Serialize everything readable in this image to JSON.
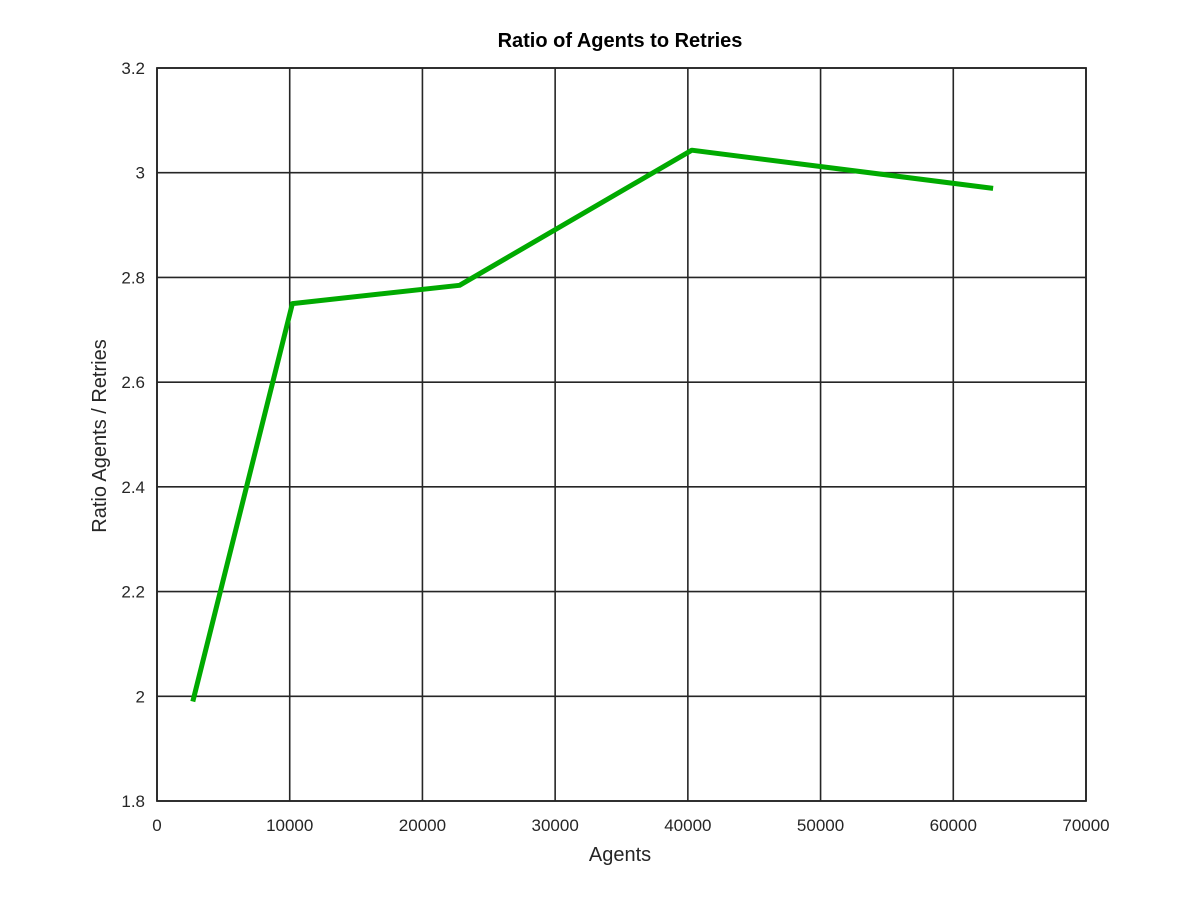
{
  "chart_data": {
    "type": "line",
    "title": "Ratio of Agents to Retries",
    "xlabel": "Agents",
    "ylabel": "Ratio Agents / Retries",
    "xlim": [
      0,
      70000
    ],
    "ylim": [
      1.8,
      3.2
    ],
    "xticks": [
      0,
      10000,
      20000,
      30000,
      40000,
      50000,
      60000,
      70000
    ],
    "yticks": [
      1.8,
      2,
      2.2,
      2.4,
      2.6,
      2.8,
      3,
      3.2
    ],
    "xtick_labels": [
      "0",
      "10000",
      "20000",
      "30000",
      "40000",
      "50000",
      "60000",
      "70000"
    ],
    "ytick_labels": [
      "1.8",
      "2",
      "2.2",
      "2.4",
      "2.6",
      "2.8",
      "3",
      "3.2"
    ],
    "grid": true,
    "legend": "none",
    "series": [
      {
        "color": "#00aa00",
        "x": [
          2700,
          10200,
          22800,
          40300,
          63000
        ],
        "y": [
          1.99,
          2.75,
          2.785,
          3.043,
          2.97
        ]
      }
    ]
  }
}
